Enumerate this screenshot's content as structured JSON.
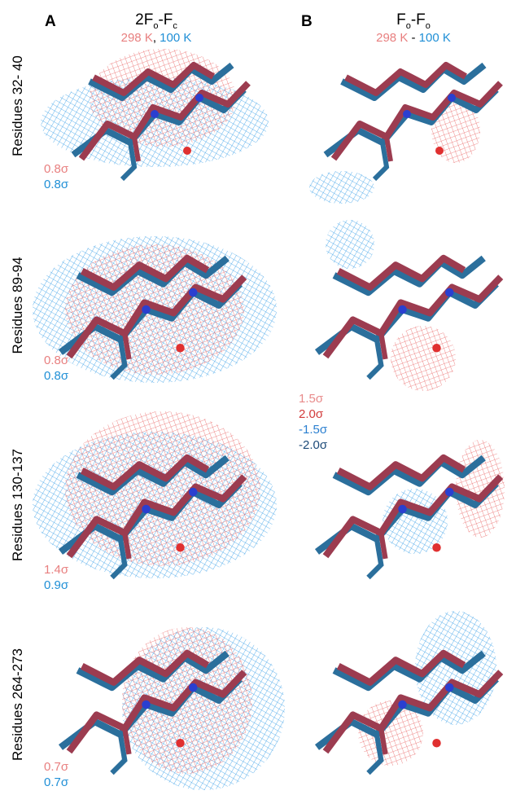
{
  "columns": [
    {
      "letter": "A",
      "title": {
        "parts": [
          "2F",
          "o",
          "-F",
          "c"
        ]
      },
      "subtitle": {
        "parts": [
          "298 K",
          ", ",
          "100 K"
        ]
      }
    },
    {
      "letter": "B",
      "title": {
        "parts": [
          "F",
          "o",
          "-F",
          "o"
        ]
      },
      "subtitle": {
        "parts": [
          "298 K",
          " - ",
          "100 K"
        ]
      }
    }
  ],
  "rows": [
    {
      "label": "Residues 32- 40",
      "sigma": [
        "0.8σ",
        "0.8σ"
      ]
    },
    {
      "label": "Residues 89-94",
      "sigma": [
        "0.8σ",
        "0.8σ"
      ]
    },
    {
      "label": "Residues 130-137",
      "sigma": [
        "1.4σ",
        "0.9σ"
      ]
    },
    {
      "label": "Residues 264-273",
      "sigma": [
        "0.7σ",
        "0.7σ"
      ]
    }
  ],
  "difference_sigma": [
    "1.5σ",
    "2.0σ",
    "-1.5σ",
    "-2.0σ"
  ]
}
